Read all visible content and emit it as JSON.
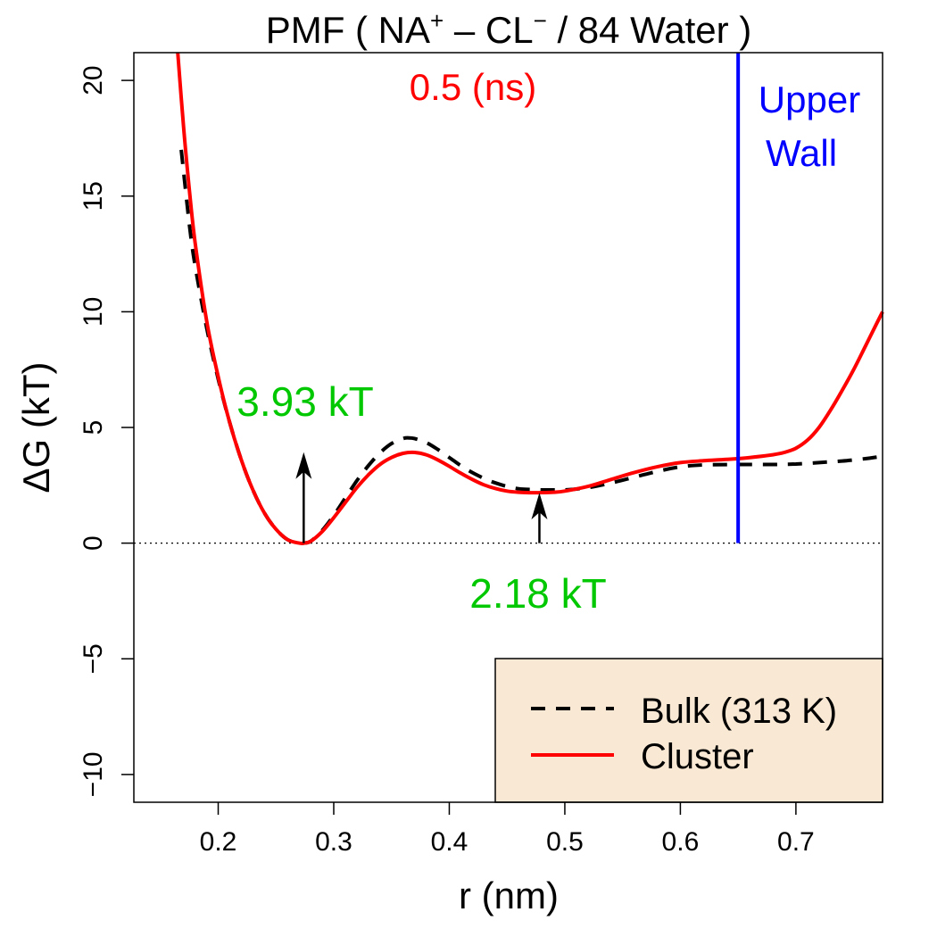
{
  "chart_data": {
    "type": "line",
    "title": {
      "prefix": "PMF ( NA",
      "sup1": "+",
      "middle": " – CL",
      "sup2": "−",
      "suffix": " / 84 Water )"
    },
    "subtitle": "0.5 (ns)",
    "xlabel": "r (nm)",
    "ylabel": "ΔG (kT)",
    "xlim": [
      0.127,
      0.775
    ],
    "ylim": [
      -11.2,
      21.2
    ],
    "xticks": [
      0.2,
      0.3,
      0.4,
      0.5,
      0.6,
      0.7
    ],
    "xtick_labels": [
      "0.2",
      "0.3",
      "0.4",
      "0.5",
      "0.6",
      "0.7"
    ],
    "yticks": [
      -10,
      -5,
      0,
      5,
      10,
      15,
      20
    ],
    "ytick_labels": [
      "−10",
      "−5",
      "0",
      "5",
      "10",
      "15",
      "20"
    ],
    "zero_line": true,
    "grid": false,
    "series": [
      {
        "name": "Bulk (313 K)",
        "style": "dashed",
        "color": "#000000",
        "x": [
          0.168,
          0.175,
          0.18,
          0.19,
          0.2,
          0.21,
          0.22,
          0.23,
          0.24,
          0.25,
          0.26,
          0.27,
          0.274,
          0.28,
          0.29,
          0.3,
          0.31,
          0.32,
          0.33,
          0.34,
          0.35,
          0.36,
          0.365,
          0.37,
          0.38,
          0.39,
          0.4,
          0.41,
          0.42,
          0.43,
          0.44,
          0.45,
          0.46,
          0.47,
          0.48,
          0.49,
          0.5,
          0.52,
          0.54,
          0.56,
          0.58,
          0.6,
          0.62,
          0.65,
          0.68,
          0.7,
          0.72,
          0.74,
          0.76,
          0.77
        ],
        "y": [
          17.0,
          13.8,
          12.0,
          9.3,
          7.1,
          5.2,
          3.6,
          2.3,
          1.3,
          0.6,
          0.15,
          0.0,
          0.0,
          0.08,
          0.55,
          1.2,
          1.95,
          2.7,
          3.35,
          3.9,
          4.3,
          4.52,
          4.55,
          4.52,
          4.35,
          4.05,
          3.7,
          3.35,
          3.05,
          2.8,
          2.6,
          2.45,
          2.35,
          2.32,
          2.3,
          2.3,
          2.3,
          2.4,
          2.6,
          2.85,
          3.1,
          3.3,
          3.38,
          3.4,
          3.4,
          3.42,
          3.48,
          3.55,
          3.65,
          3.72
        ]
      },
      {
        "name": "Cluster",
        "style": "solid",
        "color": "#ff0000",
        "x": [
          0.165,
          0.17,
          0.175,
          0.18,
          0.19,
          0.2,
          0.21,
          0.22,
          0.23,
          0.24,
          0.25,
          0.26,
          0.27,
          0.274,
          0.28,
          0.29,
          0.3,
          0.31,
          0.32,
          0.33,
          0.34,
          0.35,
          0.36,
          0.37,
          0.38,
          0.39,
          0.4,
          0.41,
          0.42,
          0.43,
          0.44,
          0.45,
          0.46,
          0.47,
          0.478,
          0.49,
          0.5,
          0.52,
          0.54,
          0.56,
          0.58,
          0.6,
          0.62,
          0.64,
          0.66,
          0.68,
          0.69,
          0.7,
          0.71,
          0.72,
          0.73,
          0.74,
          0.75,
          0.76,
          0.77,
          0.775
        ],
        "y": [
          21.2,
          18.0,
          15.3,
          13.0,
          9.6,
          7.2,
          5.2,
          3.6,
          2.3,
          1.3,
          0.6,
          0.15,
          0.0,
          0.0,
          0.08,
          0.5,
          1.1,
          1.75,
          2.4,
          2.95,
          3.4,
          3.7,
          3.88,
          3.92,
          3.82,
          3.6,
          3.32,
          3.02,
          2.75,
          2.52,
          2.36,
          2.25,
          2.2,
          2.18,
          2.18,
          2.2,
          2.25,
          2.45,
          2.75,
          3.05,
          3.3,
          3.48,
          3.56,
          3.62,
          3.7,
          3.82,
          3.92,
          4.1,
          4.45,
          5.0,
          5.75,
          6.6,
          7.5,
          8.5,
          9.5,
          10.0
        ]
      }
    ],
    "vline": {
      "x": 0.65,
      "color": "#0000ff",
      "label_line1": "Upper",
      "label_line2": "Wall"
    },
    "annotations": [
      {
        "text": "3.93 kT",
        "color": "#00c800",
        "arrow_x": 0.274,
        "arrow_from": 0.0,
        "arrow_to": 3.93
      },
      {
        "text": "2.18 kT",
        "color": "#00c800",
        "arrow_x": 0.478,
        "arrow_from": 0.0,
        "arrow_to": 2.18
      }
    ],
    "legend": {
      "placement": "bottom-right",
      "background": "#f8e8d4",
      "entries": [
        "Bulk (313 K)",
        "Cluster"
      ]
    }
  }
}
